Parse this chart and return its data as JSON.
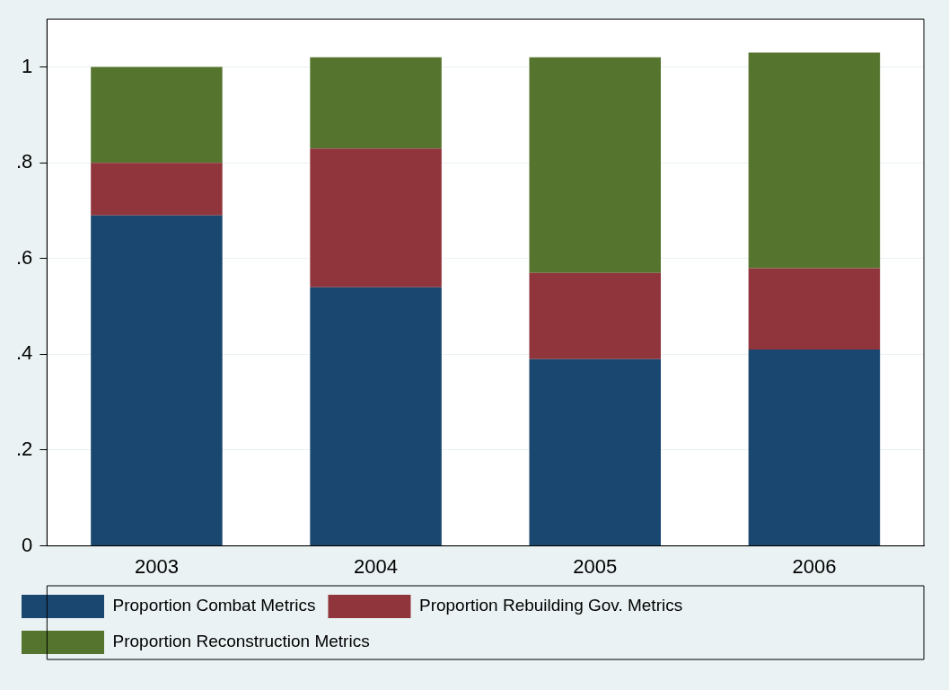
{
  "chart_data": {
    "type": "bar",
    "stacked": true,
    "categories": [
      "2003",
      "2004",
      "2005",
      "2006"
    ],
    "series": [
      {
        "name": "Proportion Combat Metrics",
        "color": "#1a476f",
        "values": [
          0.69,
          0.54,
          0.39,
          0.41
        ]
      },
      {
        "name": "Proportion Rebuilding Gov. Metrics",
        "color": "#90353b",
        "values": [
          0.11,
          0.29,
          0.18,
          0.17
        ]
      },
      {
        "name": "Proportion Reconstruction Metrics",
        "color": "#55752f",
        "values": [
          0.2,
          0.19,
          0.45,
          0.45
        ]
      }
    ],
    "ylim": [
      0,
      1.1
    ],
    "yticks": [
      0,
      {
        "value": 0.2,
        "label": ".2"
      },
      {
        "value": 0.4,
        "label": ".4"
      },
      {
        "value": 0.6,
        "label": ".6"
      },
      {
        "value": 0.8,
        "label": ".8"
      },
      1
    ],
    "grid": "y",
    "legend": "bottom"
  }
}
